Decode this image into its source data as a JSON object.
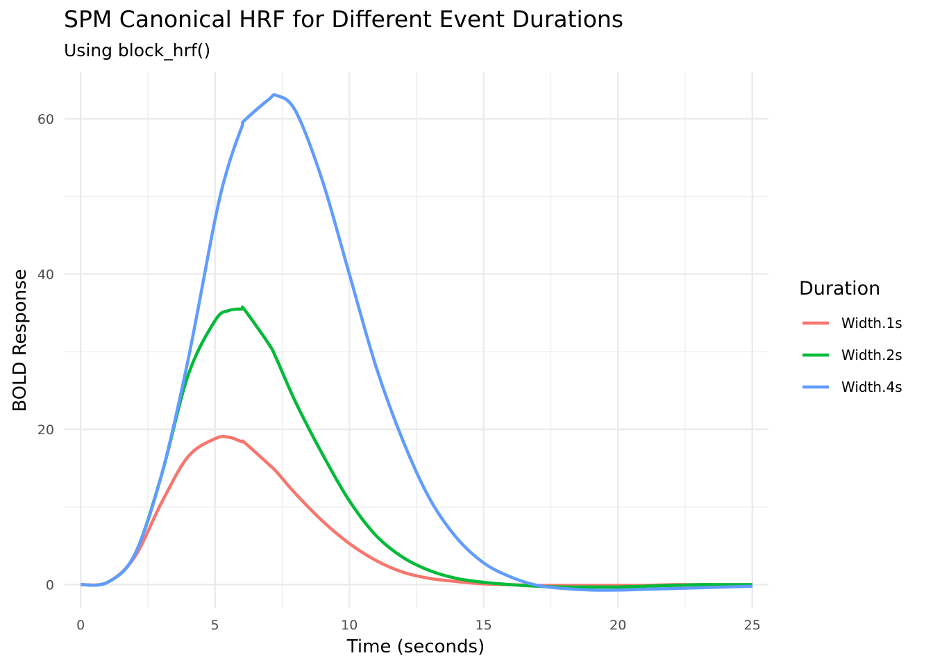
{
  "chart_data": {
    "type": "line",
    "title": "SPM Canonical HRF for Different Event Durations",
    "subtitle": "Using block_hrf()",
    "xlabel": "Time (seconds)",
    "ylabel": "BOLD Response",
    "xlim": [
      -0.6,
      25.6
    ],
    "ylim": [
      -3,
      66
    ],
    "x_ticks": [
      0,
      5,
      10,
      15,
      20,
      25
    ],
    "x_tick_labels": [
      "0",
      "5",
      "10",
      "15",
      "20",
      "25"
    ],
    "y_ticks": [
      0,
      20,
      40,
      60
    ],
    "y_tick_labels": [
      "0",
      "20",
      "40",
      "60"
    ],
    "grid": true,
    "legend": {
      "title": "Duration",
      "position": "right"
    },
    "x": [
      0,
      1,
      2,
      3,
      4,
      5,
      5.5,
      6,
      6.1,
      7,
      7.3,
      8,
      9,
      10,
      11,
      12,
      13,
      14,
      15,
      16,
      17,
      18,
      19,
      20,
      21,
      22,
      23,
      24,
      25
    ],
    "series": [
      {
        "name": "Width.1s",
        "color": "#F8766D",
        "values": [
          0,
          0.3,
          3.5,
          10.5,
          16.5,
          18.8,
          19,
          18.4,
          18.3,
          15.5,
          14.5,
          11.7,
          8.2,
          5.3,
          3.1,
          1.6,
          0.8,
          0.4,
          0.1,
          0,
          -0.1,
          -0.1,
          -0.1,
          -0.1,
          -0.1,
          0,
          0,
          0,
          0
        ]
      },
      {
        "name": "Width.2s",
        "color": "#00BA38",
        "values": [
          0,
          0.3,
          3.8,
          14,
          27,
          34,
          35.3,
          35.5,
          35.4,
          31,
          29,
          23.5,
          16.8,
          10.8,
          6.3,
          3.5,
          1.8,
          0.8,
          0.3,
          0,
          -0.2,
          -0.3,
          -0.3,
          -0.3,
          -0.2,
          -0.1,
          0,
          0,
          0
        ]
      },
      {
        "name": "Width.4s",
        "color": "#619CFF",
        "values": [
          0,
          0.3,
          3.8,
          14,
          29,
          47,
          54,
          59,
          59.8,
          62.5,
          63,
          61,
          52,
          40,
          28,
          18.5,
          11,
          6,
          2.8,
          1,
          -0.1,
          -0.5,
          -0.7,
          -0.7,
          -0.6,
          -0.5,
          -0.4,
          -0.3,
          -0.2
        ]
      }
    ]
  }
}
